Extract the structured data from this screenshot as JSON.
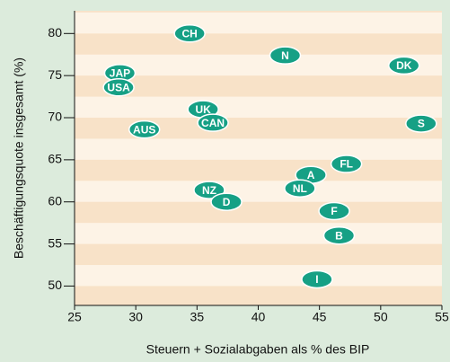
{
  "chart_data": {
    "type": "scatter",
    "x_label": "Steuern + Sozialabgaben als % des BIP",
    "y_label": "Beschäftigungsquote insgesamt (%)",
    "xlim": [
      25,
      55
    ],
    "xticks": [
      25,
      30,
      35,
      40,
      45,
      50,
      55
    ],
    "ylim": [
      47.7,
      82.7
    ],
    "yticks": [
      50,
      55,
      60,
      65,
      70,
      75,
      80
    ],
    "color": "#16a085",
    "labels": [
      "CH",
      "N",
      "DK",
      "JAP",
      "USA",
      "UK",
      "CAN",
      "S",
      "AUS",
      "FL",
      "A",
      "NL",
      "NZ",
      "D",
      "F",
      "B",
      "I"
    ],
    "x": [
      34.4,
      42.2,
      51.9,
      28.7,
      28.6,
      35.5,
      36.3,
      53.3,
      30.7,
      47.2,
      44.3,
      43.4,
      36.0,
      37.4,
      46.2,
      46.6,
      44.8
    ],
    "y": [
      80.0,
      77.4,
      76.2,
      75.3,
      73.6,
      71.0,
      69.4,
      69.3,
      68.6,
      64.5,
      63.2,
      61.6,
      61.4,
      60.0,
      58.9,
      56.0,
      50.8
    ]
  }
}
